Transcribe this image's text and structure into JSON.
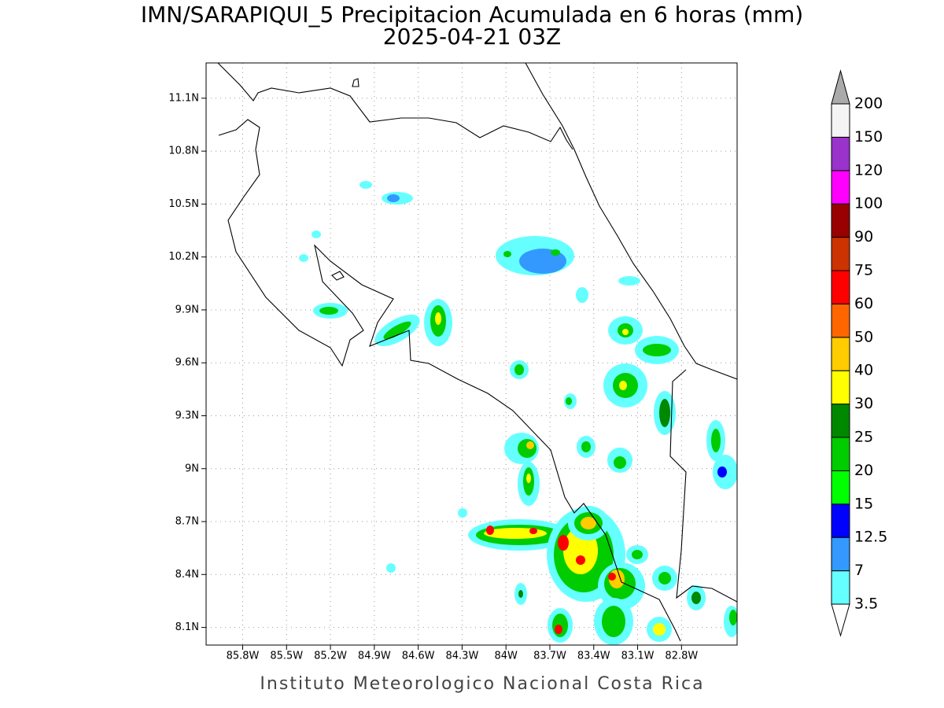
{
  "title": "IMN/SARAPIQUI_5 Precipitacion Acumulada en 6 horas (mm)",
  "subtitle": "2025-04-21 03Z",
  "footer": "Instituto Meteorologico Nacional Costa Rica",
  "map": {
    "xlim": [
      -86.05,
      -82.42
    ],
    "ylim": [
      8.0,
      11.3
    ],
    "xticks": [
      {
        "value": -85.8,
        "label": "85.8W"
      },
      {
        "value": -85.5,
        "label": "85.5W"
      },
      {
        "value": -85.2,
        "label": "85.2W"
      },
      {
        "value": -84.9,
        "label": "84.9W"
      },
      {
        "value": -84.6,
        "label": "84.6W"
      },
      {
        "value": -84.3,
        "label": "84.3W"
      },
      {
        "value": -84.0,
        "label": "84W"
      },
      {
        "value": -83.7,
        "label": "83.7W"
      },
      {
        "value": -83.4,
        "label": "83.4W"
      },
      {
        "value": -83.1,
        "label": "83.1W"
      },
      {
        "value": -82.8,
        "label": "82.8W"
      }
    ],
    "yticks": [
      {
        "value": 8.1,
        "label": "8.1N"
      },
      {
        "value": 8.4,
        "label": "8.4N"
      },
      {
        "value": 8.7,
        "label": "8.7N"
      },
      {
        "value": 9.0,
        "label": "9N"
      },
      {
        "value": 9.3,
        "label": "9.3N"
      },
      {
        "value": 9.6,
        "label": "9.6N"
      },
      {
        "value": 9.9,
        "label": "9.9N"
      },
      {
        "value": 10.2,
        "label": "10.2N"
      },
      {
        "value": 10.5,
        "label": "10.5N"
      },
      {
        "value": 10.8,
        "label": "10.8N"
      },
      {
        "value": 11.1,
        "label": "11.1N"
      }
    ],
    "grid": true
  },
  "colorbar": {
    "levels": [
      3.5,
      7,
      12.5,
      15,
      20,
      25,
      30,
      40,
      50,
      60,
      75,
      90,
      100,
      120,
      150,
      200
    ],
    "colors": [
      "#66ffff",
      "#3399ff",
      "#0000ff",
      "#00ff00",
      "#00cc00",
      "#008800",
      "#ffff00",
      "#ffcc00",
      "#ff6600",
      "#ff0000",
      "#cc3300",
      "#990000",
      "#ff00ff",
      "#9933cc",
      "#f4f4f4"
    ],
    "under_color": "#ffffff",
    "over_color": "#aaaaaa"
  }
}
